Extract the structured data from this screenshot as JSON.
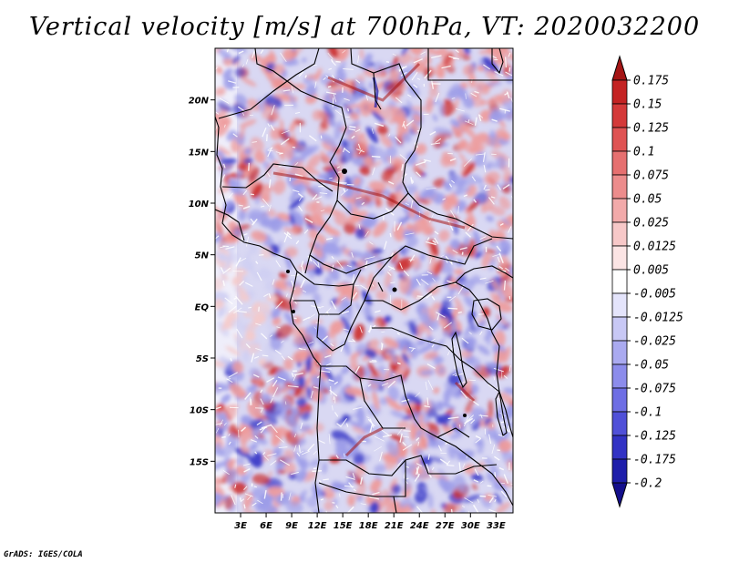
{
  "title": "Vertical velocity [m/s] at 700hPa, VT: 2020032200",
  "credit": "GrADS: IGES/COLA",
  "map": {
    "lon_range": [
      0,
      35
    ],
    "lat_range": [
      -20,
      25
    ],
    "lon_ticks": [
      "3E",
      "6E",
      "9E",
      "12E",
      "15E",
      "18E",
      "21E",
      "24E",
      "27E",
      "30E",
      "33E"
    ],
    "lat_ticks": [
      "20N",
      "15N",
      "10N",
      "5N",
      "EQ",
      "5S",
      "10S",
      "15S"
    ]
  },
  "colorbar": {
    "labels": [
      "0.175",
      "0.15",
      "0.125",
      "0.1",
      "0.075",
      "0.05",
      "0.025",
      "0.0125",
      "0.005",
      "-0.005",
      "-0.0125",
      "-0.025",
      "-0.05",
      "-0.075",
      "-0.1",
      "-0.125",
      "-0.175",
      "-0.2"
    ],
    "colors": [
      "#a51515",
      "#c42323",
      "#d43939",
      "#df5353",
      "#e67070",
      "#ec8c8c",
      "#f2aaaa",
      "#f7c8c8",
      "#fbe4e4",
      "#ffffff",
      "#e4e4fb",
      "#c8c8f5",
      "#aaaaf0",
      "#8c8ceb",
      "#6e6ee4",
      "#5050d8",
      "#3232c4",
      "#1e1eaa",
      "#140f8c"
    ]
  },
  "field_colors": {
    "ocean_base": "#efeefa",
    "land_base": "#d9d8f3",
    "updraft": "#e04848",
    "downdraft": "#4646d2"
  }
}
